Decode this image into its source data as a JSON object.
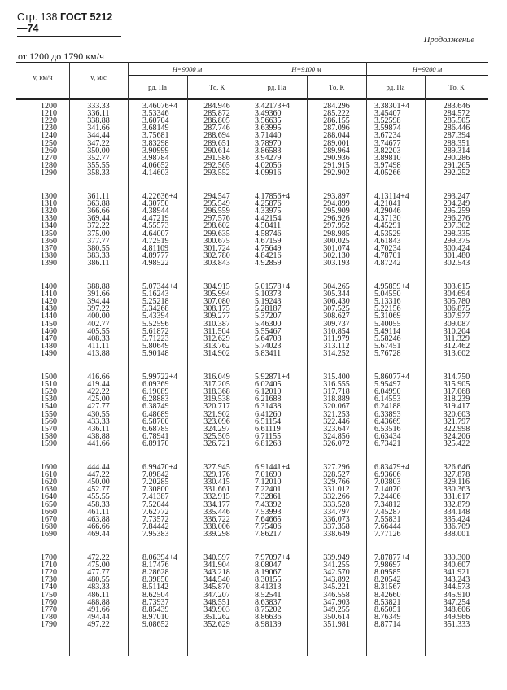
{
  "header": {
    "page": "Стр. 138",
    "standard": "ГОСТ 5212—74"
  },
  "continuation": "Продолжение",
  "range_label": "от 1200 до 1790 км/ч",
  "table": {
    "col_v_kmh": "v, км/ч",
    "col_v_ms": "v, м/с",
    "altitudes": [
      "H=9000 м",
      "H=9100 м",
      "H=9200 м"
    ],
    "col_p": "pд, Па",
    "col_t": "Tо, К",
    "groups": [
      [
        [
          "1200",
          "333.33",
          "3.46076+4",
          "284.946",
          "3.42173+4",
          "284.296",
          "3.38301+4",
          "283.646"
        ],
        [
          "1210",
          "336.11",
          "3.53346",
          "285.872",
          "3.49360",
          "285.222",
          "3.45407",
          "284.572"
        ],
        [
          "1220",
          "338.88",
          "3.60704",
          "286.805",
          "3.56635",
          "286.155",
          "3.52598",
          "285.505"
        ],
        [
          "1230",
          "341.66",
          "3.68149",
          "287.746",
          "3.63995",
          "287.096",
          "3.59874",
          "286.446"
        ],
        [
          "1240",
          "344.44",
          "3.75681",
          "288.694",
          "3.71440",
          "288.044",
          "3.67234",
          "287.394"
        ],
        [
          "1250",
          "347.22",
          "3.83298",
          "289.651",
          "3.78970",
          "289.001",
          "3.74677",
          "288.351"
        ],
        [
          "1260",
          "350.00",
          "3.90999",
          "290.614",
          "3.86583",
          "289.964",
          "3.82203",
          "289.314"
        ],
        [
          "1270",
          "352.77",
          "3.98784",
          "291.586",
          "3.94279",
          "290.936",
          "3.89810",
          "290.286"
        ],
        [
          "1280",
          "355.55",
          "4.06652",
          "292.565",
          "4.02056",
          "291.915",
          "3.97498",
          "291.265"
        ],
        [
          "1290",
          "358.33",
          "4.14603",
          "293.552",
          "4.09916",
          "292.902",
          "4.05266",
          "292.252"
        ]
      ],
      [
        [
          "1300",
          "361.11",
          "4.22636+4",
          "294.547",
          "4.17856+4",
          "293.897",
          "4.13114+4",
          "293.247"
        ],
        [
          "1310",
          "363.88",
          "4.30750",
          "295.549",
          "4.25876",
          "294.899",
          "4.21041",
          "294.249"
        ],
        [
          "1320",
          "366.66",
          "4.38944",
          "296.559",
          "4.33975",
          "295.909",
          "4.29046",
          "295.259"
        ],
        [
          "1330",
          "369.44",
          "4.47219",
          "297.576",
          "4.42154",
          "296.926",
          "4.37130",
          "296.276"
        ],
        [
          "1340",
          "372.22",
          "4.55573",
          "298.602",
          "4.50411",
          "297.952",
          "4.45291",
          "297.302"
        ],
        [
          "1350",
          "375.00",
          "4.64007",
          "299.635",
          "4.58746",
          "298.985",
          "4.53529",
          "298.335"
        ],
        [
          "1360",
          "377.77",
          "4.72519",
          "300.675",
          "4.67159",
          "300.025",
          "4.61843",
          "299.375"
        ],
        [
          "1370",
          "380.55",
          "4.81109",
          "301.724",
          "4.75649",
          "301.074",
          "4.70234",
          "300.424"
        ],
        [
          "1380",
          "383.33",
          "4.89777",
          "302.780",
          "4.84216",
          "302.130",
          "4.78701",
          "301.480"
        ],
        [
          "1390",
          "386.11",
          "4.98522",
          "303.843",
          "4.92859",
          "303.193",
          "4.87242",
          "302.543"
        ]
      ],
      [
        [
          "1400",
          "388.88",
          "5.07344+4",
          "304.915",
          "5.01578+4",
          "304.265",
          "4.95859+4",
          "303.615"
        ],
        [
          "1410",
          "391.66",
          "5.16243",
          "305.994",
          "5.10373",
          "305.344",
          "5.04550",
          "304.694"
        ],
        [
          "1420",
          "394.44",
          "5.25218",
          "307.080",
          "5.19243",
          "306.430",
          "5.13316",
          "305.780"
        ],
        [
          "1430",
          "397.22",
          "5.34268",
          "308.175",
          "5.28187",
          "307.525",
          "5.22156",
          "306.875"
        ],
        [
          "1440",
          "400.00",
          "5.43394",
          "309.277",
          "5.37207",
          "308.627",
          "5.31069",
          "307.977"
        ],
        [
          "1450",
          "402.77",
          "5.52596",
          "310.387",
          "5.46300",
          "309.737",
          "5.40055",
          "309.087"
        ],
        [
          "1460",
          "405.55",
          "5.61872",
          "311.504",
          "5.55467",
          "310.854",
          "5.49114",
          "310.204"
        ],
        [
          "1470",
          "408.33",
          "5.71223",
          "312.629",
          "5.64708",
          "311.979",
          "5.58246",
          "311.329"
        ],
        [
          "1480",
          "411.11",
          "5.80649",
          "313.762",
          "5.74023",
          "313.112",
          "5.67451",
          "312.462"
        ],
        [
          "1490",
          "413.88",
          "5.90148",
          "314.902",
          "5.83411",
          "314.252",
          "5.76728",
          "313.602"
        ]
      ],
      [
        [
          "1500",
          "416.66",
          "5.99722+4",
          "316.049",
          "5.92871+4",
          "315.400",
          "5.86077+4",
          "314.750"
        ],
        [
          "1510",
          "419.44",
          "6.09369",
          "317.205",
          "6.02405",
          "316.555",
          "5.95497",
          "315.905"
        ],
        [
          "1520",
          "422.22",
          "6.19089",
          "318.368",
          "6.12010",
          "317.718",
          "6.04990",
          "317.068"
        ],
        [
          "1530",
          "425.00",
          "6.28883",
          "319.538",
          "6.21688",
          "318.889",
          "6.14553",
          "318.239"
        ],
        [
          "1540",
          "427.77",
          "6.38749",
          "320.717",
          "6.31438",
          "320.067",
          "6.24188",
          "319.417"
        ],
        [
          "1550",
          "430.55",
          "6.48689",
          "321.902",
          "6.41260",
          "321.253",
          "6.33893",
          "320.603"
        ],
        [
          "1560",
          "433.33",
          "6.58700",
          "323.096",
          "6.51154",
          "322.446",
          "6.43669",
          "321.797"
        ],
        [
          "1570",
          "436.11",
          "6.68785",
          "324.297",
          "6.61119",
          "323.647",
          "6.53516",
          "322.998"
        ],
        [
          "1580",
          "438.88",
          "6.78941",
          "325.505",
          "6.71155",
          "324.856",
          "6.63434",
          "324.206"
        ],
        [
          "1590",
          "441.66",
          "6.89170",
          "326.721",
          "6.81263",
          "326.072",
          "6.73421",
          "325.422"
        ]
      ],
      [
        [
          "1600",
          "444.44",
          "6.99470+4",
          "327.945",
          "6.91441+4",
          "327.296",
          "6.83479+4",
          "326.646"
        ],
        [
          "1610",
          "447.22",
          "7.09842",
          "329.176",
          "7.01690",
          "328.527",
          "6.93606",
          "327.878"
        ],
        [
          "1620",
          "450.00",
          "7.20285",
          "330.415",
          "7.12010",
          "329.766",
          "7.03803",
          "329.116"
        ],
        [
          "1630",
          "452.77",
          "7.30800",
          "331.661",
          "7.22401",
          "331.012",
          "7.14070",
          "330.363"
        ],
        [
          "1640",
          "455.55",
          "7.41387",
          "332.915",
          "7.32861",
          "332.266",
          "7.24406",
          "331.617"
        ],
        [
          "1650",
          "458.33",
          "7.52044",
          "334.177",
          "7.43392",
          "333.528",
          "7.34812",
          "332.879"
        ],
        [
          "1660",
          "461.11",
          "7.62772",
          "335.446",
          "7.53993",
          "334.797",
          "7.45287",
          "334.148"
        ],
        [
          "1670",
          "463.88",
          "7.73572",
          "336.722",
          "7.64665",
          "336.073",
          "7.55831",
          "335.424"
        ],
        [
          "1680",
          "466.66",
          "7.84442",
          "338.006",
          "7.75406",
          "337.358",
          "7.66444",
          "336.709"
        ],
        [
          "1690",
          "469.44",
          "7.95383",
          "339.298",
          "7.86217",
          "338.649",
          "7.77126",
          "338.001"
        ]
      ],
      [
        [
          "1700",
          "472.22",
          "8.06394+4",
          "340.597",
          "7.97097+4",
          "339.949",
          "7.87877+4",
          "339.300"
        ],
        [
          "1710",
          "475.00",
          "8.17476",
          "341.904",
          "8.08047",
          "341.255",
          "7.98697",
          "340.607"
        ],
        [
          "1720",
          "477.77",
          "8.28628",
          "343.218",
          "8.19067",
          "342.570",
          "8.09585",
          "341.921"
        ],
        [
          "1730",
          "480.55",
          "8.39850",
          "344.540",
          "8.30155",
          "343.892",
          "8.20542",
          "343.243"
        ],
        [
          "1740",
          "483.33",
          "8.51142",
          "345.870",
          "8.41313",
          "345.221",
          "8.31567",
          "344.573"
        ],
        [
          "1750",
          "486.11",
          "8.62504",
          "347.207",
          "8.52541",
          "346.558",
          "8.42660",
          "345.910"
        ],
        [
          "1760",
          "488.88",
          "8.73937",
          "348.551",
          "8.63837",
          "347.903",
          "8.53821",
          "347.254"
        ],
        [
          "1770",
          "491.66",
          "8.85439",
          "349.903",
          "8.75202",
          "349.255",
          "8.65051",
          "348.606"
        ],
        [
          "1780",
          "494.44",
          "8.97010",
          "351.262",
          "8.86636",
          "350.614",
          "8.76349",
          "349.966"
        ],
        [
          "1790",
          "497.22",
          "9.08652",
          "352.629",
          "8.98139",
          "351.981",
          "8.87714",
          "351.333"
        ]
      ]
    ]
  }
}
